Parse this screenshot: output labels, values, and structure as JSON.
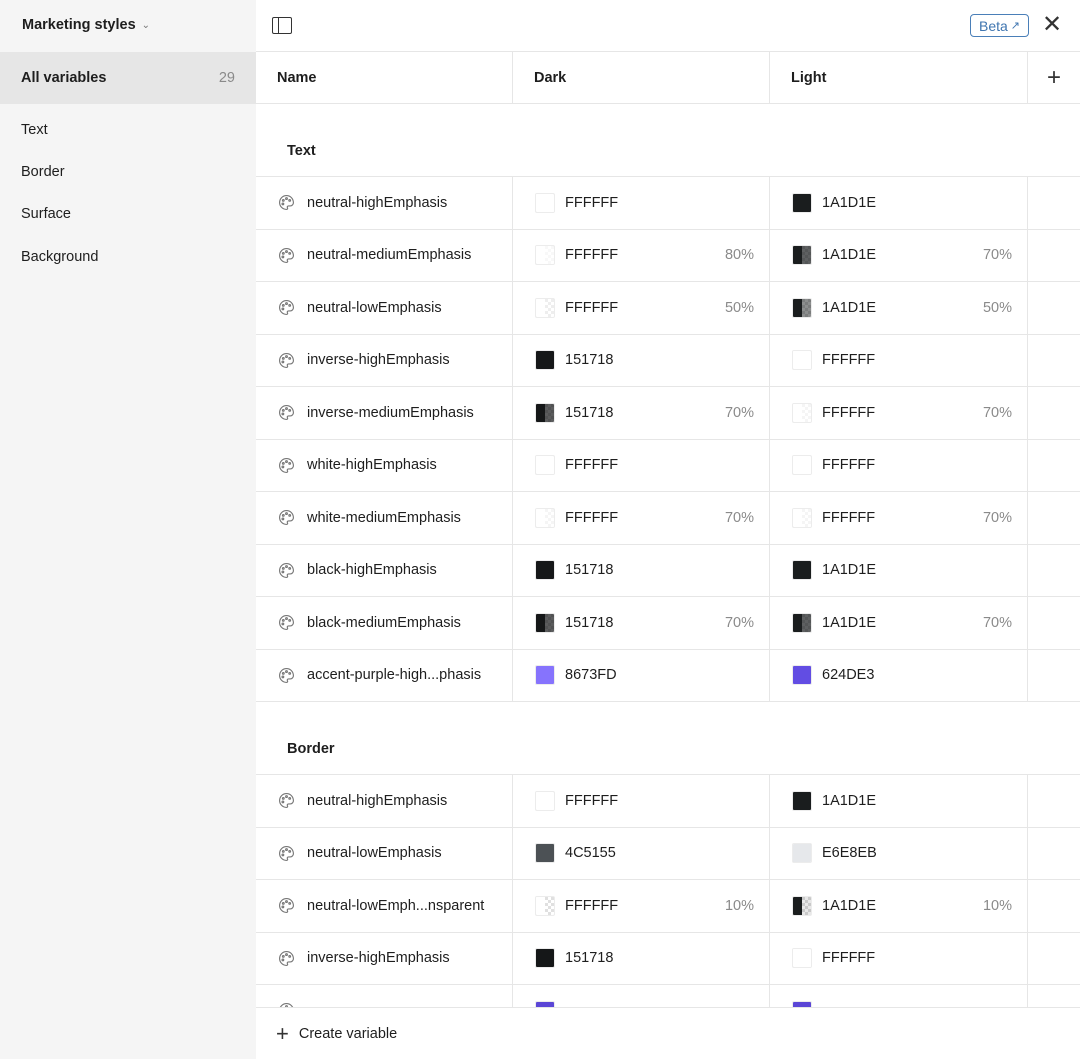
{
  "sidebar": {
    "collection": "Marketing styles",
    "all_label": "All variables",
    "all_count": "29",
    "groups": [
      "Text",
      "Border",
      "Surface",
      "Background"
    ]
  },
  "header": {
    "beta": "Beta",
    "columns": {
      "name": "Name",
      "dark": "Dark",
      "light": "Light"
    }
  },
  "footer": {
    "create": "Create variable"
  },
  "sections": [
    {
      "title": "Text",
      "rows": [
        {
          "name": "neutral-highEmphasis",
          "dark": {
            "hex": "FFFFFF",
            "alpha": ""
          },
          "light": {
            "hex": "1A1D1E",
            "alpha": ""
          }
        },
        {
          "name": "neutral-mediumEmphasis",
          "dark": {
            "hex": "FFFFFF",
            "alpha": "80%"
          },
          "light": {
            "hex": "1A1D1E",
            "alpha": "70%"
          }
        },
        {
          "name": "neutral-lowEmphasis",
          "dark": {
            "hex": "FFFFFF",
            "alpha": "50%"
          },
          "light": {
            "hex": "1A1D1E",
            "alpha": "50%"
          }
        },
        {
          "name": "inverse-highEmphasis",
          "dark": {
            "hex": "151718",
            "alpha": ""
          },
          "light": {
            "hex": "FFFFFF",
            "alpha": ""
          }
        },
        {
          "name": "inverse-mediumEmphasis",
          "dark": {
            "hex": "151718",
            "alpha": "70%"
          },
          "light": {
            "hex": "FFFFFF",
            "alpha": "70%"
          }
        },
        {
          "name": "white-highEmphasis",
          "dark": {
            "hex": "FFFFFF",
            "alpha": ""
          },
          "light": {
            "hex": "FFFFFF",
            "alpha": ""
          }
        },
        {
          "name": "white-mediumEmphasis",
          "dark": {
            "hex": "FFFFFF",
            "alpha": "70%"
          },
          "light": {
            "hex": "FFFFFF",
            "alpha": "70%"
          }
        },
        {
          "name": "black-highEmphasis",
          "dark": {
            "hex": "151718",
            "alpha": ""
          },
          "light": {
            "hex": "1A1D1E",
            "alpha": ""
          }
        },
        {
          "name": "black-mediumEmphasis",
          "dark": {
            "hex": "151718",
            "alpha": "70%"
          },
          "light": {
            "hex": "1A1D1E",
            "alpha": "70%"
          }
        },
        {
          "name": "accent-purple-high...phasis",
          "dark": {
            "hex": "8673FD",
            "alpha": ""
          },
          "light": {
            "hex": "624DE3",
            "alpha": ""
          }
        }
      ]
    },
    {
      "title": "Border",
      "rows": [
        {
          "name": "neutral-highEmphasis",
          "dark": {
            "hex": "FFFFFF",
            "alpha": ""
          },
          "light": {
            "hex": "1A1D1E",
            "alpha": ""
          }
        },
        {
          "name": "neutral-lowEmphasis",
          "dark": {
            "hex": "4C5155",
            "alpha": ""
          },
          "light": {
            "hex": "E6E8EB",
            "alpha": ""
          }
        },
        {
          "name": "neutral-lowEmph...nsparent",
          "dark": {
            "hex": "FFFFFF",
            "alpha": "10%"
          },
          "light": {
            "hex": "1A1D1E",
            "alpha": "10%"
          }
        },
        {
          "name": "inverse-highEmphasis",
          "dark": {
            "hex": "151718",
            "alpha": ""
          },
          "light": {
            "hex": "FFFFFF",
            "alpha": ""
          }
        },
        {
          "name": "",
          "dark": {
            "hex": "",
            "alpha": "",
            "swatch": "5B46D6"
          },
          "light": {
            "hex": "",
            "alpha": "",
            "swatch": "5B46D6"
          }
        }
      ]
    }
  ]
}
